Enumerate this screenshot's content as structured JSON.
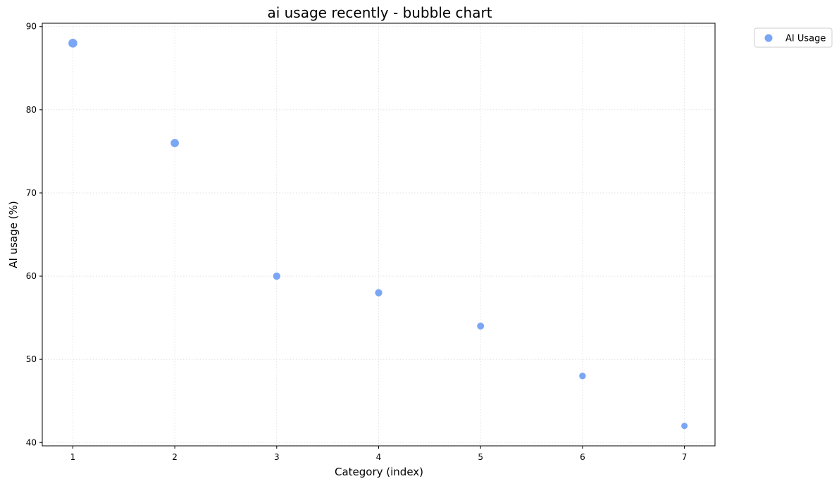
{
  "chart_data": {
    "type": "scatter",
    "title": "ai usage recently - bubble chart",
    "xlabel": "Category (index)",
    "ylabel": "AI usage (%)",
    "xlim": [
      0.7,
      7.3
    ],
    "ylim": [
      39.6,
      90.4
    ],
    "xticks": [
      1,
      2,
      3,
      4,
      5,
      6,
      7
    ],
    "yticks": [
      40,
      50,
      60,
      70,
      80,
      90
    ],
    "grid": true,
    "legend_position": "outside-top-right",
    "series": [
      {
        "name": "AI Usage",
        "color": "#7ba6f5",
        "x": [
          1,
          2,
          3,
          4,
          5,
          6,
          7
        ],
        "y": [
          88,
          76,
          60,
          58,
          54,
          48,
          42
        ]
      }
    ]
  }
}
